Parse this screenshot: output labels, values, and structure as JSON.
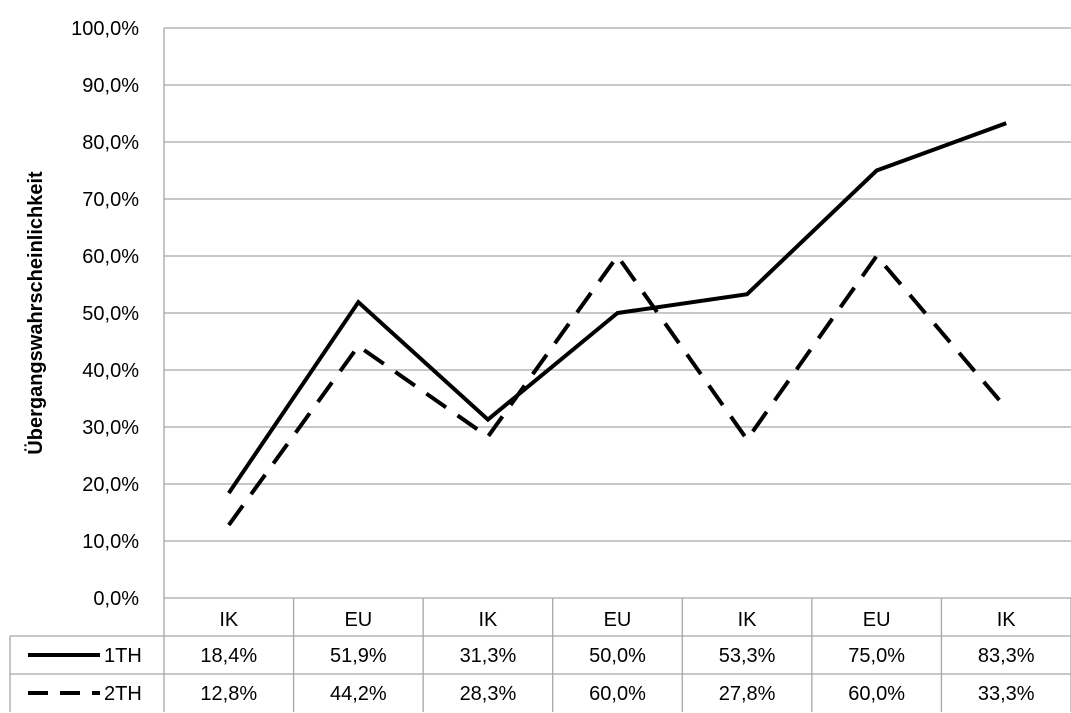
{
  "chart_data": {
    "type": "line",
    "ylabel": "Übergangswahrscheinlichkeit",
    "xlabel": "",
    "title": "",
    "categories": [
      "IK",
      "EU",
      "IK",
      "EU",
      "IK",
      "EU",
      "IK"
    ],
    "ylim": [
      0,
      100
    ],
    "y_ticks": [
      "0,0%",
      "10,0%",
      "20,0%",
      "30,0%",
      "40,0%",
      "50,0%",
      "60,0%",
      "70,0%",
      "80,0%",
      "90,0%",
      "100,0%"
    ],
    "grid": true,
    "legend": "data-table-left",
    "series": [
      {
        "name": "1TH",
        "style": "solid",
        "color": "#000000",
        "values": [
          18.4,
          51.9,
          31.3,
          50.0,
          53.3,
          75.0,
          83.3
        ],
        "labels": [
          "18,4%",
          "51,9%",
          "31,3%",
          "50,0%",
          "53,3%",
          "75,0%",
          "83,3%"
        ]
      },
      {
        "name": "2TH",
        "style": "dashed",
        "color": "#000000",
        "values": [
          12.8,
          44.2,
          28.3,
          60.0,
          27.8,
          60.0,
          33.3
        ],
        "labels": [
          "12,8%",
          "44,2%",
          "28,3%",
          "60,0%",
          "27,8%",
          "60,0%",
          "33,3%"
        ]
      }
    ]
  }
}
